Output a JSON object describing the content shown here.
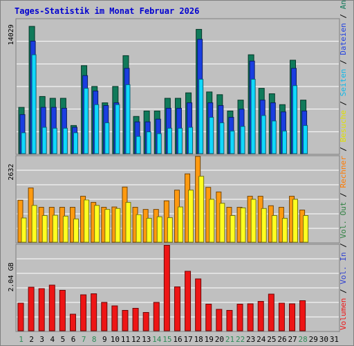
{
  "chart_data": {
    "type": "bar",
    "title": "Tages-Statistik im Monat Februar 2026",
    "days": [
      "1",
      "2",
      "3",
      "4",
      "5",
      "6",
      "7",
      "8",
      "9",
      "10",
      "11",
      "12",
      "13",
      "14",
      "15",
      "16",
      "17",
      "18",
      "19",
      "20",
      "21",
      "22",
      "23",
      "24",
      "25",
      "26",
      "27",
      "28",
      "29",
      "30",
      "31"
    ],
    "weekend_days": [
      "1",
      "7",
      "8",
      "14",
      "15",
      "21",
      "22",
      "28"
    ],
    "panels": [
      {
        "name": "requests",
        "ytick_label": "14029",
        "ytick_value": 14029,
        "ymax": 14800,
        "series": [
          {
            "name": "Anfragen",
            "color": "#107a5a",
            "values": [
              5100,
              14029,
              6300,
              6100,
              6100,
              3100,
              9700,
              7400,
              5600,
              7400,
              10800,
              4100,
              4700,
              4700,
              6100,
              6100,
              6700,
              13700,
              6800,
              6500,
              4700,
              5900,
              10900,
              7200,
              6600,
              5400,
              10300,
              5900
            ]
          },
          {
            "name": "Dateien",
            "color": "#1a3ee0",
            "values": [
              4300,
              12400,
              5100,
              5100,
              5000,
              2900,
              8600,
              6900,
              5300,
              5600,
              9400,
              3500,
              3500,
              3800,
              5000,
              5000,
              5600,
              12600,
              5600,
              5300,
              4000,
              4900,
              10200,
              5900,
              5600,
              4600,
              9400,
              4700
            ]
          },
          {
            "name": "Seiten",
            "color": "#10d8ff",
            "values": [
              2300,
              10900,
              2900,
              2800,
              2800,
              2300,
              7200,
              5400,
              3400,
              5400,
              7600,
              1900,
              2400,
              2200,
              2800,
              2800,
              2900,
              8200,
              4000,
              3400,
              2500,
              3000,
              8200,
              4200,
              3600,
              2500,
              7500,
              3100
            ]
          }
        ]
      },
      {
        "name": "visits",
        "ytick_label": "2632",
        "ytick_value": 2632,
        "ymax": 2800,
        "series": [
          {
            "name": "Rechner",
            "color": "#ff9a10",
            "values": [
              1370,
              1770,
              1140,
              1140,
              1140,
              1140,
              1500,
              1300,
              1140,
              1150,
              1800,
              1140,
              1070,
              1070,
              1350,
              1700,
              2230,
              2800,
              1790,
              1640,
              1140,
              1140,
              1500,
              1500,
              1190,
              1140,
              1500,
              1050
            ]
          },
          {
            "name": "Besuche",
            "color": "#ffff20",
            "values": [
              790,
              1200,
              870,
              880,
              850,
              760,
              1380,
              1200,
              1070,
              1100,
              1300,
              900,
              780,
              830,
              800,
              1150,
              1700,
              2150,
              1400,
              1270,
              870,
              1120,
              1400,
              1100,
              870,
              780,
              1400,
              870
            ]
          }
        ]
      },
      {
        "name": "volume",
        "ytick_label": "2.04 GB",
        "ytick_value": 2.04,
        "ymax": 2.48,
        "series": [
          {
            "name": "Volumen",
            "color": "#ee1515",
            "values": [
              0.8,
              1.26,
              1.22,
              1.32,
              1.17,
              0.48,
              1.04,
              1.07,
              0.82,
              0.72,
              0.59,
              0.65,
              0.53,
              0.82,
              2.47,
              1.27,
              1.72,
              1.5,
              0.77,
              0.62,
              0.59,
              0.77,
              0.78,
              0.85,
              1.06,
              0.8,
              0.78,
              0.87
            ]
          }
        ]
      }
    ],
    "legend": {
      "placement": "right, vertical",
      "items": [
        {
          "text": "Volumen",
          "color": "#ee1515"
        },
        {
          "text": " / ",
          "color": "#000000"
        },
        {
          "text": "Vol. In",
          "color": "#3040d0"
        },
        {
          "text": " / ",
          "color": "#000000"
        },
        {
          "text": "Vol. Out",
          "color": "#2e8040"
        },
        {
          "text": " / ",
          "color": "#000000"
        },
        {
          "text": "Rechner",
          "color": "#ff7a00"
        },
        {
          "text": " / ",
          "color": "#000000"
        },
        {
          "text": "Besuche",
          "color": "#e0e000"
        },
        {
          "text": " / ",
          "color": "#000000"
        },
        {
          "text": "Seiten",
          "color": "#10b8e8"
        },
        {
          "text": " / ",
          "color": "#000000"
        },
        {
          "text": "Dateien",
          "color": "#2040e0"
        },
        {
          "text": " / ",
          "color": "#000000"
        },
        {
          "text": "Anfragen",
          "color": "#107a5a"
        }
      ]
    },
    "colors": {
      "background": "#c0c0c0",
      "grid": "#ffffff",
      "weekend_label": "#2e8b57",
      "weekday_label": "#000000"
    }
  }
}
